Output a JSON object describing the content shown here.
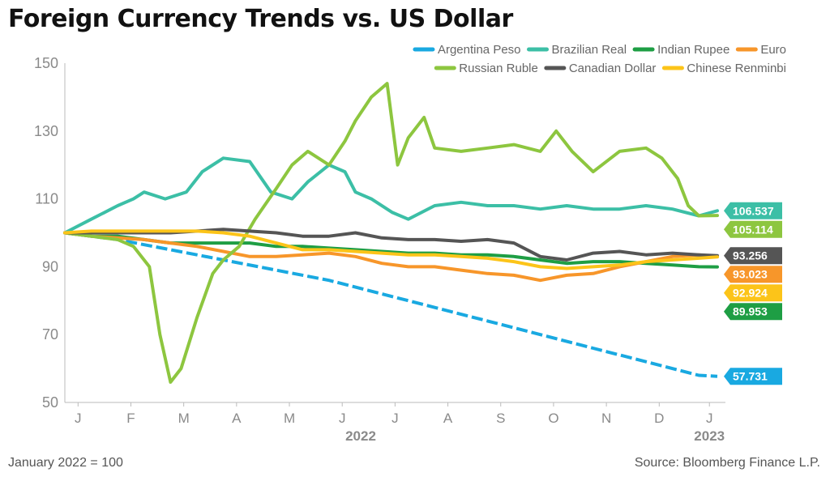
{
  "title": "Foreign Currency Trends vs. US Dollar",
  "footnote": "January 2022 = 100",
  "source": "Source: Bloomberg Finance L.P.",
  "chart_data": {
    "type": "line",
    "title": "Foreign Currency Trends vs. US Dollar",
    "xlabel": "",
    "ylabel": "",
    "ylim": [
      50,
      150
    ],
    "y_ticks": [
      50,
      70,
      90,
      110,
      130,
      150
    ],
    "x_range": [
      0,
      12.35
    ],
    "x_unit": "months since January 2022",
    "month_ticks": [
      {
        "label": "J",
        "x": 0.25
      },
      {
        "label": "F",
        "x": 1.25
      },
      {
        "label": "M",
        "x": 2.25
      },
      {
        "label": "A",
        "x": 3.25
      },
      {
        "label": "M",
        "x": 4.25
      },
      {
        "label": "J",
        "x": 5.25
      },
      {
        "label": "J",
        "x": 6.25
      },
      {
        "label": "A",
        "x": 7.25
      },
      {
        "label": "S",
        "x": 8.25
      },
      {
        "label": "O",
        "x": 9.25
      },
      {
        "label": "N",
        "x": 10.25
      },
      {
        "label": "D",
        "x": 11.25
      },
      {
        "label": "J",
        "x": 12.2
      }
    ],
    "year_labels": [
      {
        "label": "2022",
        "x": 5.6
      },
      {
        "label": "2023",
        "x": 12.2
      }
    ],
    "legend_position": "top-right",
    "grid": false,
    "series": [
      {
        "name": "Argentina Peso",
        "color": "#19a9e1",
        "dashed": true,
        "end_label": "57.731",
        "x": [
          0,
          1,
          2,
          3,
          4,
          5,
          6,
          7,
          8,
          9,
          10,
          11,
          12,
          12.35
        ],
        "y": [
          100,
          98,
          95,
          92,
          89,
          86,
          82,
          78,
          74,
          70,
          66,
          62,
          58,
          57.7
        ]
      },
      {
        "name": "Brazilian Real",
        "color": "#3cbfa6",
        "dashed": false,
        "end_label": "106.537",
        "x": [
          0,
          0.5,
          1,
          1.3,
          1.5,
          1.9,
          2.3,
          2.6,
          3,
          3.5,
          3.9,
          4.3,
          4.6,
          5,
          5.3,
          5.5,
          5.8,
          6.2,
          6.5,
          7,
          7.5,
          8,
          8.5,
          9,
          9.5,
          10,
          10.5,
          11,
          11.5,
          12,
          12.35
        ],
        "y": [
          100,
          104,
          108,
          110,
          112,
          110,
          112,
          118,
          122,
          121,
          112,
          110,
          115,
          120,
          118,
          112,
          110,
          106,
          104,
          108,
          109,
          108,
          108,
          107,
          108,
          107,
          107,
          108,
          107,
          105,
          106.5
        ]
      },
      {
        "name": "Indian Rupee",
        "color": "#1e9e44",
        "dashed": false,
        "end_label": "89.953",
        "x": [
          0,
          0.5,
          1,
          1.5,
          2,
          2.5,
          3,
          3.5,
          4,
          4.5,
          5,
          5.5,
          6,
          6.5,
          7,
          7.5,
          8,
          8.5,
          9,
          9.5,
          10,
          10.5,
          11,
          11.5,
          12,
          12.35
        ],
        "y": [
          100,
          99,
          99,
          98,
          97,
          97,
          97,
          97,
          96,
          96,
          95.5,
          95,
          94.5,
          94,
          94,
          93.5,
          93.5,
          93,
          92,
          91,
          91.5,
          91.5,
          91,
          90.5,
          90,
          89.95
        ]
      },
      {
        "name": "Euro",
        "color": "#f7962a",
        "dashed": false,
        "end_label": "93.023",
        "x": [
          0,
          0.5,
          1,
          1.5,
          2,
          2.5,
          3,
          3.5,
          4,
          4.5,
          5,
          5.5,
          6,
          6.5,
          7,
          7.5,
          8,
          8.5,
          9,
          9.5,
          10,
          10.5,
          11,
          11.5,
          12,
          12.35
        ],
        "y": [
          100,
          99,
          98.5,
          98,
          97,
          96,
          94.5,
          93,
          93,
          93.5,
          94,
          93,
          91,
          90,
          90,
          89,
          88,
          87.5,
          86,
          87.5,
          88,
          90,
          91.5,
          93,
          93.5,
          93.0
        ]
      },
      {
        "name": "Russian Ruble",
        "color": "#8dc63f",
        "dashed": false,
        "end_label": "105.114",
        "x": [
          0,
          0.5,
          1,
          1.3,
          1.6,
          1.8,
          2,
          2.2,
          2.5,
          2.8,
          3,
          3.3,
          3.6,
          4,
          4.3,
          4.6,
          5,
          5.3,
          5.5,
          5.8,
          6.1,
          6.3,
          6.5,
          6.8,
          7,
          7.5,
          8,
          8.5,
          9,
          9.3,
          9.6,
          10,
          10.5,
          11,
          11.3,
          11.6,
          11.8,
          12,
          12.35
        ],
        "y": [
          100,
          99,
          98,
          96,
          90,
          70,
          56,
          60,
          75,
          88,
          92,
          96,
          104,
          113,
          120,
          124,
          120,
          127,
          133,
          140,
          144,
          120,
          128,
          134,
          125,
          124,
          125,
          126,
          124,
          130,
          124,
          118,
          124,
          125,
          122,
          116,
          108,
          105,
          105.1
        ]
      },
      {
        "name": "Canadian Dollar",
        "color": "#555555",
        "dashed": false,
        "end_label": "93.256",
        "x": [
          0,
          0.5,
          1,
          1.5,
          2,
          2.5,
          3,
          3.5,
          4,
          4.5,
          5,
          5.5,
          6,
          6.5,
          7,
          7.5,
          8,
          8.5,
          9,
          9.5,
          10,
          10.5,
          11,
          11.5,
          12,
          12.35
        ],
        "y": [
          100,
          100,
          100,
          100,
          100,
          100.5,
          101,
          100.5,
          100,
          99,
          99,
          100,
          98.5,
          98,
          98,
          97.5,
          98,
          97,
          93,
          92,
          94,
          94.5,
          93.5,
          94,
          93.5,
          93.26
        ]
      },
      {
        "name": "Chinese Renminbi",
        "color": "#fcc419",
        "dashed": false,
        "end_label": "92.924",
        "x": [
          0,
          0.5,
          1,
          1.5,
          2,
          2.5,
          3,
          3.5,
          4,
          4.5,
          5,
          5.5,
          6,
          6.5,
          7,
          7.5,
          8,
          8.5,
          9,
          9.5,
          10,
          10.5,
          11,
          11.5,
          12,
          12.35
        ],
        "y": [
          100,
          100.5,
          100.5,
          100.5,
          100.5,
          100.5,
          100,
          99,
          97,
          95,
          95,
          94.5,
          94,
          93.5,
          93.5,
          93,
          92.5,
          91.5,
          90,
          89.5,
          90,
          90.5,
          91.5,
          92,
          92.5,
          92.92
        ]
      }
    ]
  }
}
